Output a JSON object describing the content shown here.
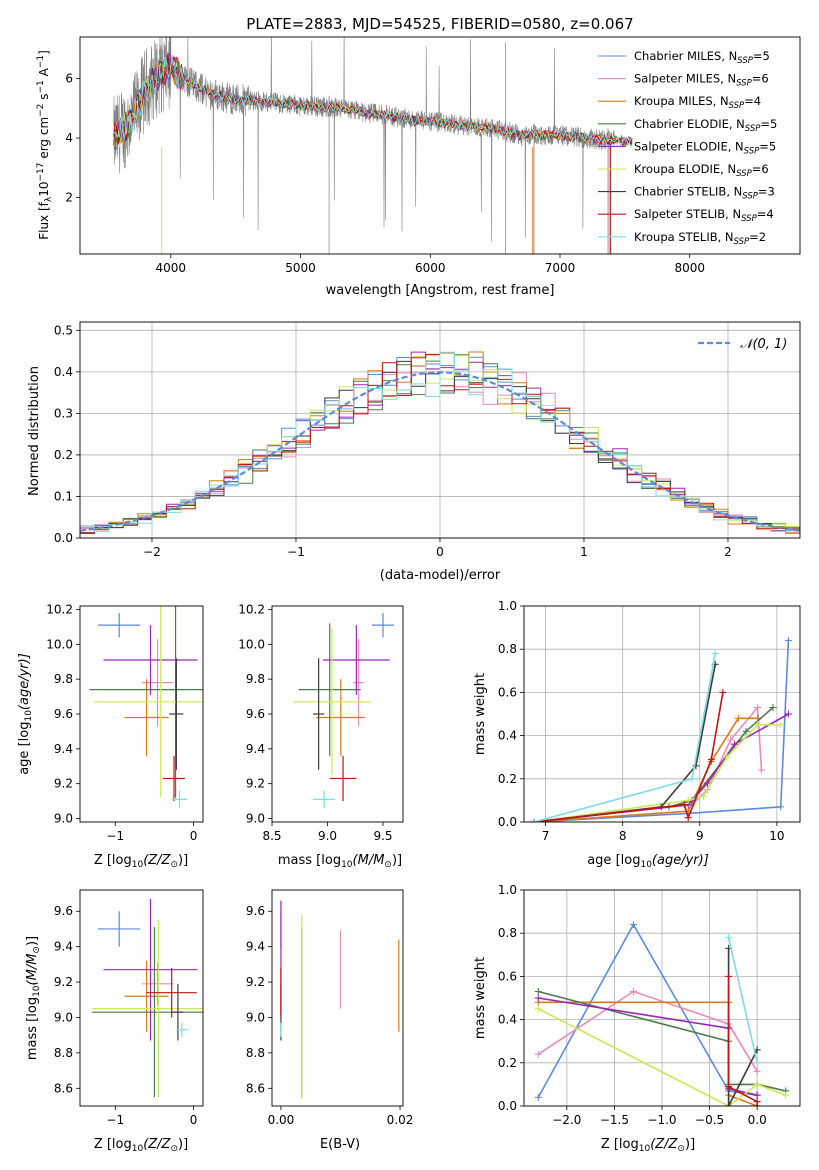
{
  "colors": {
    "Chabrier MILES": "#5b8bd9",
    "Salpeter MILES": "#e88abd",
    "Kroupa MILES": "#dd7a18",
    "Chabrier ELODIE": "#4f7a4c",
    "Salpeter ELODIE": "#9a28b5",
    "Kroupa ELODIE": "#c8ea55",
    "Chabrier STELIB": "#3c3c3c",
    "Salpeter STELIB": "#c01515",
    "Kroupa STELIB": "#7ddde3"
  },
  "chart_data": [
    {
      "id": "spectrum",
      "type": "line",
      "title": "PLATE=2883, MJD=54525, FIBERID=0580, z=0.067",
      "xlabel": "wavelength [Angstrom, rest frame]",
      "ylabel": "Flux [f",
      "ylabel_sub": "λ",
      "ylabel_rest": "10",
      "ylabel_sup1": "−17",
      "ylabel_rest2": " erg cm",
      "ylabel_sup2": "−2",
      "ylabel_rest3": " s",
      "ylabel_sup3": "−1",
      "ylabel_rest4": " A",
      "ylabel_sup4": "−1",
      "ylabel_end": "]",
      "xlim": [
        3300,
        8850
      ],
      "ylim": [
        0.1,
        7.4
      ],
      "xticks": [
        4000,
        5000,
        6000,
        7000,
        8000
      ],
      "xtick_labels": [
        "4000",
        "5000",
        "6000",
        "7000",
        "8000"
      ],
      "yticks": [
        2,
        4,
        6
      ],
      "ytick_labels": [
        "2",
        "4",
        "6"
      ],
      "legend_position": "right",
      "legend": [
        {
          "name": "Chabrier MILES",
          "n": "5"
        },
        {
          "name": "Salpeter MILES",
          "n": "6"
        },
        {
          "name": "Kroupa MILES",
          "n": "4"
        },
        {
          "name": "Chabrier ELODIE",
          "n": "5"
        },
        {
          "name": "Salpeter ELODIE",
          "n": "5"
        },
        {
          "name": "Kroupa ELODIE",
          "n": "6"
        },
        {
          "name": "Chabrier STELIB",
          "n": "3"
        },
        {
          "name": "Salpeter STELIB",
          "n": "4"
        },
        {
          "name": "Kroupa STELIB",
          "n": "2"
        }
      ],
      "legend_n_label": "N",
      "legend_n_sub": "SSP",
      "data_color": "#808080",
      "data_range": [
        3560,
        7420
      ],
      "model_range": [
        3560,
        7560
      ],
      "continuum": {
        "x": [
          3560,
          3700,
          3800,
          3900,
          4000,
          4100,
          4300,
          4500,
          4800,
          5000,
          5300,
          5600,
          5900,
          6100,
          6300,
          6500,
          6700,
          7000,
          7300,
          7500
        ],
        "y": [
          4.0,
          4.6,
          5.6,
          6.1,
          6.4,
          6.0,
          5.5,
          5.3,
          5.2,
          5.1,
          5.0,
          4.8,
          4.6,
          4.5,
          4.4,
          4.3,
          4.1,
          4.1,
          3.95,
          3.9
        ]
      }
    },
    {
      "id": "residuals",
      "type": "histogram",
      "xlabel": "(data-model)/error",
      "ylabel": "Normed distribution",
      "xlim": [
        -2.5,
        2.5
      ],
      "ylim": [
        0,
        0.52
      ],
      "xticks": [
        -2,
        -1,
        0,
        1,
        2
      ],
      "xtick_labels": [
        "−2",
        "−1",
        "0",
        "1",
        "2"
      ],
      "yticks": [
        0.0,
        0.1,
        0.2,
        0.3,
        0.4,
        0.5
      ],
      "ytick_labels": [
        "0.0",
        "0.1",
        "0.2",
        "0.3",
        "0.4",
        "0.5"
      ],
      "grid": true,
      "legend_position": "top-right",
      "reference_curve": {
        "name": "𝒩(0, 1)",
        "color": "#5b8bd9",
        "style": "dashed"
      },
      "bin_width": 0.1
    },
    {
      "id": "age_vs_Z",
      "type": "errorbar",
      "xlabel": "Z [log",
      "xlabel_sub": "10",
      "xlabel_rest": "(Z/Z",
      "xlabel_sub2": "⊙",
      "xlabel_end": ")]",
      "ylabel": "age  [log",
      "ylabel_sub": "10",
      "ylabel_rest": "(age/yr)]",
      "xlim": [
        -1.45,
        0.12
      ],
      "ylim": [
        8.98,
        10.22
      ],
      "xticks": [
        -1,
        0
      ],
      "xtick_labels": [
        "−1",
        "0"
      ],
      "yticks": [
        9.0,
        9.2,
        9.4,
        9.6,
        9.8,
        10.0,
        10.2
      ],
      "ytick_labels": [
        "9.0",
        "9.2",
        "9.4",
        "9.6",
        "9.8",
        "10.0",
        "10.2"
      ],
      "points": [
        {
          "model": "Chabrier MILES",
          "x": -0.95,
          "xerr": 0.27,
          "y": 10.11,
          "yerr": 0.07
        },
        {
          "model": "Salpeter MILES",
          "x": -0.46,
          "xerr": 0.2,
          "y": 9.78,
          "yerr": 0.25
        },
        {
          "model": "Kroupa MILES",
          "x": -0.6,
          "xerr": 0.28,
          "y": 9.58,
          "yerr": 0.22
        },
        {
          "model": "Chabrier ELODIE",
          "x": -0.23,
          "xerr": 1.1,
          "y": 9.74,
          "yerr": 0.62
        },
        {
          "model": "Salpeter ELODIE",
          "x": -0.55,
          "xerr": 0.6,
          "y": 9.91,
          "yerr": 0.2
        },
        {
          "model": "Kroupa ELODIE",
          "x": -0.42,
          "xerr": 0.85,
          "y": 9.67,
          "yerr": 0.55
        },
        {
          "model": "Chabrier STELIB",
          "x": -0.22,
          "xerr": 0.09,
          "y": 9.6,
          "yerr": 0.32
        },
        {
          "model": "Salpeter STELIB",
          "x": -0.25,
          "xerr": 0.14,
          "y": 9.23,
          "yerr": 0.13
        },
        {
          "model": "Kroupa STELIB",
          "x": -0.18,
          "xerr": 0.1,
          "y": 9.11,
          "yerr": 0.05
        }
      ]
    },
    {
      "id": "age_vs_mass",
      "type": "errorbar",
      "xlabel": "mass [log",
      "xlabel_sub": "10",
      "xlabel_rest": "(M/M",
      "xlabel_sub2": "⊙",
      "xlabel_end": ")]",
      "xlim": [
        8.5,
        9.68
      ],
      "ylim": [
        8.98,
        10.22
      ],
      "xticks": [
        8.5,
        9.0,
        9.5
      ],
      "xtick_labels": [
        "8.5",
        "9.0",
        "9.5"
      ],
      "yticks": [
        9.0,
        9.2,
        9.4,
        9.6,
        9.8,
        10.0,
        10.2
      ],
      "ytick_labels": [
        "9.0",
        "9.2",
        "9.4",
        "9.6",
        "9.8",
        "10.0",
        "10.2"
      ],
      "points": [
        {
          "model": "Chabrier MILES",
          "x": 9.5,
          "xerr": 0.1,
          "y": 10.11,
          "yerr": 0.07
        },
        {
          "model": "Salpeter MILES",
          "x": 9.28,
          "xerr": 0.05,
          "y": 9.78,
          "yerr": 0.25
        },
        {
          "model": "Kroupa MILES",
          "x": 9.12,
          "xerr": 0.22,
          "y": 9.58,
          "yerr": 0.22
        },
        {
          "model": "Chabrier ELODIE",
          "x": 9.02,
          "xerr": 0.28,
          "y": 9.74,
          "yerr": 0.38
        },
        {
          "model": "Salpeter ELODIE",
          "x": 9.26,
          "xerr": 0.3,
          "y": 9.91,
          "yerr": 0.2
        },
        {
          "model": "Kroupa ELODIE",
          "x": 9.04,
          "xerr": 0.35,
          "y": 9.67,
          "yerr": 0.42
        },
        {
          "model": "Chabrier STELIB",
          "x": 8.92,
          "xerr": 0.05,
          "y": 9.6,
          "yerr": 0.32
        },
        {
          "model": "Salpeter STELIB",
          "x": 9.14,
          "xerr": 0.12,
          "y": 9.23,
          "yerr": 0.13
        },
        {
          "model": "Kroupa STELIB",
          "x": 8.97,
          "xerr": 0.1,
          "y": 9.11,
          "yerr": 0.05
        }
      ]
    },
    {
      "id": "weight_vs_age",
      "type": "line",
      "xlabel": "age  [log",
      "xlabel_sub": "10",
      "xlabel_rest": "(age/yr)]",
      "ylabel": "mass weight",
      "xlim": [
        6.72,
        10.3
      ],
      "ylim": [
        0,
        1
      ],
      "xticks": [
        7,
        8,
        9,
        10
      ],
      "xtick_labels": [
        "7",
        "8",
        "9",
        "10"
      ],
      "yticks": [
        0.0,
        0.2,
        0.4,
        0.6,
        0.8,
        1.0
      ],
      "ytick_labels": [
        "0.0",
        "0.2",
        "0.4",
        "0.6",
        "0.8",
        "1.0"
      ],
      "grid": true,
      "series": [
        {
          "model": "Chabrier MILES",
          "x": [
            6.85,
            8.85,
            10.05,
            10.15
          ],
          "y": [
            0.0,
            0.04,
            0.07,
            0.84
          ]
        },
        {
          "model": "Salpeter MILES",
          "x": [
            6.85,
            8.9,
            9.1,
            9.4,
            9.75,
            9.8
          ],
          "y": [
            0.0,
            0.08,
            0.15,
            0.38,
            0.53,
            0.24
          ]
        },
        {
          "model": "Kroupa MILES",
          "x": [
            6.85,
            8.85,
            9.15,
            9.5,
            9.75
          ],
          "y": [
            0.0,
            0.05,
            0.28,
            0.48,
            0.48
          ]
        },
        {
          "model": "Chabrier ELODIE",
          "x": [
            6.85,
            8.6,
            8.9,
            9.6,
            9.95
          ],
          "y": [
            0.0,
            0.07,
            0.1,
            0.42,
            0.53
          ]
        },
        {
          "model": "Salpeter ELODIE",
          "x": [
            6.85,
            8.85,
            9.1,
            9.45,
            10.15
          ],
          "y": [
            0.0,
            0.08,
            0.18,
            0.36,
            0.5
          ]
        },
        {
          "model": "Kroupa ELODIE",
          "x": [
            6.85,
            8.85,
            9.05,
            9.35,
            9.75,
            10.05
          ],
          "y": [
            0.0,
            0.1,
            0.12,
            0.3,
            0.45,
            0.45
          ]
        },
        {
          "model": "Chabrier STELIB",
          "x": [
            6.85,
            8.5,
            8.95,
            9.2
          ],
          "y": [
            0.0,
            0.07,
            0.26,
            0.73
          ]
        },
        {
          "model": "Salpeter STELIB",
          "x": [
            6.85,
            8.8,
            8.85,
            9.15,
            9.3
          ],
          "y": [
            0.0,
            0.08,
            0.02,
            0.29,
            0.6
          ]
        },
        {
          "model": "Kroupa STELIB",
          "x": [
            6.85,
            8.9,
            9.2
          ],
          "y": [
            0.0,
            0.2,
            0.78
          ]
        }
      ]
    },
    {
      "id": "mass_vs_Z",
      "type": "errorbar",
      "xlabel": "Z [log",
      "xlabel_sub": "10",
      "xlabel_rest": "(Z/Z",
      "xlabel_sub2": "⊙",
      "xlabel_end": ")]",
      "ylabel": "mass [log",
      "ylabel_sub": "10",
      "ylabel_rest": "(M/M",
      "ylabel_sub2": "⊙",
      "ylabel_end": ")]",
      "xlim": [
        -1.45,
        0.12
      ],
      "ylim": [
        8.5,
        9.72
      ],
      "xticks": [
        -1,
        0
      ],
      "xtick_labels": [
        "−1",
        "0"
      ],
      "yticks": [
        8.6,
        8.8,
        9.0,
        9.2,
        9.4,
        9.6
      ],
      "ytick_labels": [
        "8.6",
        "8.8",
        "9.0",
        "9.2",
        "9.4",
        "9.6"
      ],
      "points": [
        {
          "model": "Chabrier MILES",
          "x": -0.95,
          "xerr": 0.27,
          "y": 9.5,
          "yerr": 0.1
        },
        {
          "model": "Salpeter MILES",
          "x": -0.46,
          "xerr": 0.2,
          "y": 9.19,
          "yerr": 0.12
        },
        {
          "model": "Kroupa MILES",
          "x": -0.6,
          "xerr": 0.28,
          "y": 9.12,
          "yerr": 0.2
        },
        {
          "model": "Chabrier ELODIE",
          "x": -0.5,
          "xerr": 0.8,
          "y": 9.03,
          "yerr": 0.48
        },
        {
          "model": "Salpeter ELODIE",
          "x": -0.55,
          "xerr": 0.6,
          "y": 9.27,
          "yerr": 0.4
        },
        {
          "model": "Kroupa ELODIE",
          "x": -0.45,
          "xerr": 0.85,
          "y": 9.05,
          "yerr": 0.5
        },
        {
          "model": "Chabrier STELIB",
          "x": -0.2,
          "xerr": 0.07,
          "y": 9.03,
          "yerr": 0.16
        },
        {
          "model": "Salpeter STELIB",
          "x": -0.28,
          "xerr": 0.32,
          "y": 9.14,
          "yerr": 0.14
        },
        {
          "model": "Kroupa STELIB",
          "x": -0.15,
          "xerr": 0.08,
          "y": 8.93,
          "yerr": 0.04
        }
      ]
    },
    {
      "id": "mass_vs_ebv",
      "type": "errorbar",
      "xlabel": "E(B-V)",
      "xlim": [
        -0.0015,
        0.0205
      ],
      "ylim": [
        8.5,
        9.72
      ],
      "xticks": [
        0.0,
        0.02
      ],
      "xtick_labels": [
        "0.00",
        "0.02"
      ],
      "yticks": [
        8.6,
        8.8,
        9.0,
        9.2,
        9.4,
        9.6
      ],
      "ytick_labels": [
        "8.6",
        "8.8",
        "9.0",
        "9.2",
        "9.4",
        "9.6"
      ],
      "points": [
        {
          "model": "Chabrier MILES",
          "x": 0.0,
          "xerr": 0.0,
          "y": 9.5,
          "yerr": 0.1
        },
        {
          "model": "Salpeter MILES",
          "x": 0.01,
          "xerr": 0.0,
          "y": 9.27,
          "yerr": 0.22
        },
        {
          "model": "Kroupa MILES",
          "x": 0.0198,
          "xerr": 0.0,
          "y": 9.18,
          "yerr": 0.26
        },
        {
          "model": "Chabrier ELODIE",
          "x": 0.0035,
          "xerr": 0.0,
          "y": 9.03,
          "yerr": 0.48
        },
        {
          "model": "Salpeter ELODIE",
          "x": 0.0,
          "xerr": 0.0,
          "y": 9.34,
          "yerr": 0.32
        },
        {
          "model": "Kroupa ELODIE",
          "x": 0.0035,
          "xerr": 0.0,
          "y": 9.06,
          "yerr": 0.52
        },
        {
          "model": "Chabrier STELIB",
          "x": 0.0,
          "xerr": 0.0,
          "y": 9.03,
          "yerr": 0.16
        },
        {
          "model": "Salpeter STELIB",
          "x": 0.0,
          "xerr": 0.0,
          "y": 9.14,
          "yerr": 0.14
        },
        {
          "model": "Kroupa STELIB",
          "x": 0.0,
          "xerr": 0.0,
          "y": 8.93,
          "yerr": 0.04
        }
      ]
    },
    {
      "id": "weight_vs_Z",
      "type": "line",
      "xlabel": "Z [log",
      "xlabel_sub": "10",
      "xlabel_rest": "(Z/Z",
      "xlabel_sub2": "⊙",
      "xlabel_end": ")]",
      "ylabel": "mass weight",
      "xlim": [
        -2.45,
        0.45
      ],
      "ylim": [
        0,
        1
      ],
      "xticks": [
        -2.0,
        -1.5,
        -1.0,
        -0.5,
        0.0
      ],
      "xtick_labels": [
        "−2.0",
        "−1.5",
        "−1.0",
        "−0.5",
        "0.0"
      ],
      "yticks": [
        0.0,
        0.2,
        0.4,
        0.6,
        0.8,
        1.0
      ],
      "ytick_labels": [
        "0.0",
        "0.2",
        "0.4",
        "0.6",
        "0.8",
        "1.0"
      ],
      "grid": true,
      "series": [
        {
          "model": "Chabrier MILES",
          "x": [
            -2.3,
            -1.3,
            -0.3,
            0.0
          ],
          "y": [
            0.04,
            0.84,
            0.07,
            0.05
          ]
        },
        {
          "model": "Salpeter MILES",
          "x": [
            -2.3,
            -1.3,
            -0.3,
            0.0
          ],
          "y": [
            0.24,
            0.53,
            0.38,
            0.16
          ]
        },
        {
          "model": "Kroupa MILES",
          "x": [
            -2.3,
            -0.3,
            -0.3,
            0.0
          ],
          "y": [
            0.48,
            0.48,
            0.05,
            0.0
          ]
        },
        {
          "model": "Chabrier ELODIE",
          "x": [
            -2.3,
            -0.3,
            -0.3,
            0.0,
            0.3
          ],
          "y": [
            0.53,
            0.3,
            0.1,
            0.1,
            0.07
          ]
        },
        {
          "model": "Salpeter ELODIE",
          "x": [
            -2.3,
            -0.3,
            -0.3,
            0.0
          ],
          "y": [
            0.5,
            0.36,
            0.08,
            0.05
          ]
        },
        {
          "model": "Kroupa ELODIE",
          "x": [
            -2.3,
            -0.3,
            0.0,
            0.3
          ],
          "y": [
            0.45,
            0.0,
            0.1,
            0.05
          ]
        },
        {
          "model": "Chabrier STELIB",
          "x": [
            -0.3,
            -0.3,
            -0.3,
            0.0
          ],
          "y": [
            0.73,
            0.0,
            0.0,
            0.26
          ]
        },
        {
          "model": "Salpeter STELIB",
          "x": [
            -0.3,
            -0.3,
            0.0,
            0.0
          ],
          "y": [
            0.6,
            0.09,
            0.02,
            0.0
          ]
        },
        {
          "model": "Kroupa STELIB",
          "x": [
            -0.3,
            0.0
          ],
          "y": [
            0.78,
            0.2
          ]
        }
      ]
    }
  ]
}
